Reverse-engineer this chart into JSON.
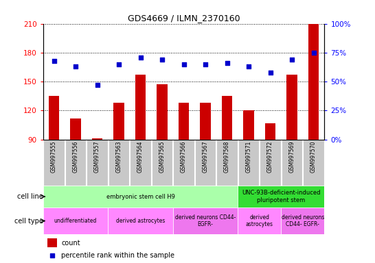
{
  "title": "GDS4669 / ILMN_2370160",
  "samples": [
    "GSM997555",
    "GSM997556",
    "GSM997557",
    "GSM997563",
    "GSM997564",
    "GSM997565",
    "GSM997566",
    "GSM997567",
    "GSM997568",
    "GSM997571",
    "GSM997572",
    "GSM997569",
    "GSM997570"
  ],
  "counts": [
    135,
    112,
    91,
    128,
    157,
    147,
    128,
    128,
    135,
    120,
    107,
    157,
    210
  ],
  "percentiles": [
    68,
    63,
    47,
    65,
    71,
    69,
    65,
    65,
    66,
    63,
    58,
    69,
    75
  ],
  "ylim_left": [
    90,
    210
  ],
  "ylim_right": [
    0,
    100
  ],
  "yticks_left": [
    90,
    120,
    150,
    180,
    210
  ],
  "yticks_right": [
    0,
    25,
    50,
    75,
    100
  ],
  "bar_color": "#cc0000",
  "dot_color": "#0000cc",
  "sample_bg": "#c8c8c8",
  "cell_line_groups": [
    {
      "label": "embryonic stem cell H9",
      "start": 0,
      "end": 9,
      "color": "#aaffaa"
    },
    {
      "label": "UNC-93B-deficient-induced\npluripotent stem",
      "start": 9,
      "end": 13,
      "color": "#33dd33"
    }
  ],
  "cell_type_groups": [
    {
      "label": "undifferentiated",
      "start": 0,
      "end": 3,
      "color": "#ff88ff"
    },
    {
      "label": "derived astrocytes",
      "start": 3,
      "end": 6,
      "color": "#ff88ff"
    },
    {
      "label": "derived neurons CD44-\nEGFR-",
      "start": 6,
      "end": 9,
      "color": "#ee77ee"
    },
    {
      "label": "derived\nastrocytes",
      "start": 9,
      "end": 11,
      "color": "#ff88ff"
    },
    {
      "label": "derived neurons\nCD44- EGFR-",
      "start": 11,
      "end": 13,
      "color": "#ee77ee"
    }
  ],
  "legend_count_color": "#cc0000",
  "legend_dot_color": "#0000cc"
}
